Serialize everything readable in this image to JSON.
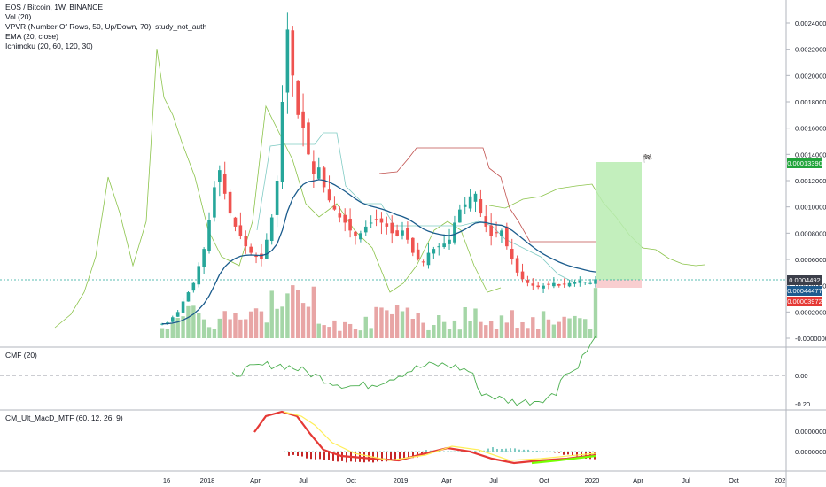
{
  "main_legend": {
    "symbol": "EOS / Bitcoin, 1W, BINANCE",
    "vol": "Vol (20)",
    "vpvr": "VPVR (Number Of Rows, 50, Up/Down, 70): study_not_auth",
    "ema": "EMA (20, close)",
    "ichimoku": "Ichimoku (20, 60, 120, 30)"
  },
  "cmf_legend": "CMF (20)",
  "macd_legend": "CM_Ult_MacD_MTF (60, 12, 26, 9)",
  "price_labels": {
    "top": "0.00013390",
    "current": "0.0004492",
    "ema": "0.00044477",
    "stop": "0.00003972"
  },
  "flag_glyph": "🏁",
  "colors": {
    "up": "#26a69a",
    "down": "#ef5350",
    "ema": "#1a5b8c",
    "ichi_green": "#8bc34a",
    "ichi_red": "#c0504d",
    "ichi_teal": "#80cbc4",
    "vol_up": "#a5d6a7",
    "vol_down": "#e8a5a5",
    "profit": "#b9ecb2",
    "loss": "#f8c9cb",
    "label_top": "#21a43b",
    "label_cur": "#3c3f4a",
    "label_ema": "#1e5b8e",
    "label_stop": "#e53935"
  },
  "chart_data": [
    {
      "type": "candlestick",
      "title": "EOS / Bitcoin, 1W, BINANCE",
      "x_ticks": [
        "16",
        "2018",
        "Apr",
        "Jul",
        "Oct",
        "2019",
        "Apr",
        "Jul",
        "Oct",
        "2020",
        "Apr",
        "Jul",
        "Oct",
        "202"
      ],
      "y_ticks": [
        "0.0024000",
        "0.0022000",
        "0.0020000",
        "0.0018000",
        "0.0016000",
        "0.0014000",
        "0.0012000",
        "0.0010000",
        "0.0008000",
        "0.0006000",
        "0.0004000",
        "0.0002000",
        "-0.0000000"
      ],
      "ylim": [
        0,
        0.00245
      ],
      "close_path": [
        0.00011,
        0.00012,
        0.00016,
        0.0002,
        0.00028,
        0.00035,
        0.00042,
        0.00055,
        0.00068,
        0.0009,
        0.00115,
        0.00128,
        0.0011,
        0.00095,
        0.00085,
        0.00078,
        0.0007,
        0.00065,
        0.00062,
        0.0006,
        0.00075,
        0.00092,
        0.0012,
        0.0018,
        0.00235,
        0.002,
        0.0017,
        0.0016,
        0.0014,
        0.00125,
        0.0013,
        0.00115,
        0.00105,
        0.00098,
        0.00092,
        0.00088,
        0.00082,
        0.00078,
        0.0008,
        0.00085,
        0.00088,
        0.0009,
        0.00088,
        0.00085,
        0.0008,
        0.00078,
        0.00082,
        0.00075,
        0.00065,
        0.0006,
        0.00058,
        0.00065,
        0.00068,
        0.0007,
        0.00072,
        0.00075,
        0.00088,
        0.00098,
        0.00102,
        0.00108,
        0.0011,
        0.00095,
        0.00085,
        0.00078,
        0.0008,
        0.00082,
        0.0007,
        0.0006,
        0.0005,
        0.00045,
        0.00042,
        0.0004,
        0.00039,
        0.0004,
        0.00041,
        0.00042,
        0.0004,
        0.00041,
        0.00042,
        0.00043,
        0.00044,
        0.00043,
        0.00042,
        0.000449
      ]
    },
    {
      "type": "line",
      "title": "CMF (20)",
      "y_ticks": [
        "0.00",
        "-0.20"
      ],
      "ylim": [
        -0.3,
        0.3
      ]
    },
    {
      "type": "line",
      "title": "CM_Ult_MacD_MTF (60, 12, 26, 9)",
      "y_ticks": [
        "0.0000000",
        "0.0000000"
      ],
      "ylim": [
        -0.00035,
        0.0004
      ]
    }
  ]
}
